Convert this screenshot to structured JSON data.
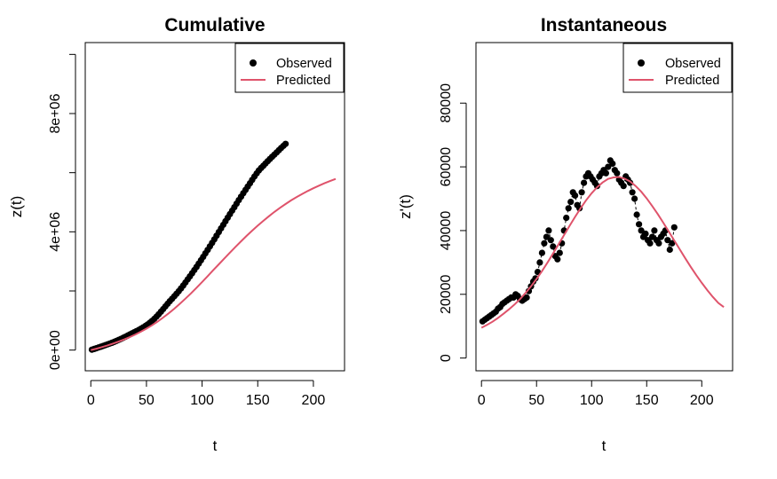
{
  "colors": {
    "observed": "#000000",
    "predicted": "#DF536B",
    "axis": "#000000"
  },
  "chart_data": [
    {
      "type": "scatter",
      "title": "Cumulative",
      "xlabel": "t",
      "ylabel": "z(t)",
      "xlim": [
        -5,
        228
      ],
      "ylim": [
        -700000,
        10400000
      ],
      "x_ticks": [
        0,
        50,
        100,
        150,
        200
      ],
      "x_tick_labels": [
        "0",
        "50",
        "100",
        "150",
        "200"
      ],
      "y_ticks": [
        0,
        2000000,
        4000000,
        6000000,
        8000000,
        10000000
      ],
      "y_tick_labels": [
        "0e+00",
        "",
        "4e+06",
        "",
        "8e+06",
        ""
      ],
      "legend_position": "top-right",
      "grid": false,
      "series": [
        {
          "name": "Observed",
          "kind": "points",
          "x": [
            1,
            3,
            5,
            7,
            9,
            11,
            13,
            15,
            17,
            19,
            21,
            23,
            25,
            27,
            29,
            31,
            33,
            35,
            37,
            39,
            41,
            43,
            45,
            47,
            49,
            51,
            53,
            55,
            57,
            59,
            61,
            63,
            65,
            67,
            69,
            71,
            73,
            75,
            77,
            79,
            81,
            83,
            85,
            87,
            89,
            91,
            93,
            95,
            97,
            99,
            101,
            103,
            105,
            107,
            109,
            111,
            113,
            115,
            117,
            119,
            121,
            123,
            125,
            127,
            129,
            131,
            133,
            135,
            137,
            139,
            141,
            143,
            145,
            147,
            149,
            151,
            153,
            155,
            157,
            159,
            161,
            163,
            165,
            167,
            169,
            171,
            173,
            175
          ],
          "y": [
            15000,
            38000,
            63000,
            88000,
            114000,
            140000,
            166000,
            193000,
            220000,
            249000,
            279000,
            310000,
            343000,
            377000,
            413000,
            450000,
            488000,
            527000,
            565000,
            603000,
            641000,
            681000,
            723000,
            767000,
            815000,
            867000,
            924000,
            986000,
            1055000,
            1131000,
            1212000,
            1297000,
            1386000,
            1475000,
            1565000,
            1652000,
            1737000,
            1821000,
            1905000,
            1992000,
            2085000,
            2183000,
            2285000,
            2389000,
            2493000,
            2598000,
            2704000,
            2812000,
            2923000,
            3037000,
            3153000,
            3271000,
            3389000,
            3508000,
            3627000,
            3747000,
            3869000,
            3992000,
            4114000,
            4236000,
            4357000,
            4478000,
            4597000,
            4715000,
            4833000,
            4952000,
            5071000,
            5190000,
            5305000,
            5418000,
            5531000,
            5643000,
            5756000,
            5870000,
            5976000,
            6075000,
            6157000,
            6233000,
            6312000,
            6388000,
            6464000,
            6538000,
            6611000,
            6685000,
            6760000,
            6835000,
            6905000,
            6975000
          ]
        },
        {
          "name": "Predicted",
          "kind": "line",
          "x": [
            0,
            5,
            10,
            15,
            20,
            25,
            30,
            35,
            40,
            45,
            50,
            55,
            60,
            65,
            70,
            75,
            80,
            85,
            90,
            95,
            100,
            105,
            110,
            115,
            120,
            125,
            130,
            135,
            140,
            145,
            150,
            155,
            160,
            165,
            170,
            175,
            180,
            185,
            190,
            195,
            200,
            205,
            210,
            215,
            220
          ],
          "y": [
            0,
            48000,
            101000,
            158000,
            220000,
            287000,
            360000,
            440000,
            527000,
            622000,
            726000,
            840000,
            964000,
            1099000,
            1244000,
            1399000,
            1564000,
            1738000,
            1920000,
            2109000,
            2303000,
            2501000,
            2701000,
            2901000,
            3100000,
            3297000,
            3490000,
            3679000,
            3862000,
            4039000,
            4209000,
            4371000,
            4526000,
            4672000,
            4810000,
            4940000,
            5062000,
            5176000,
            5283000,
            5382000,
            5475000,
            5561000,
            5641000,
            5716000,
            5790000
          ]
        }
      ]
    },
    {
      "type": "scatter",
      "title": "Instantaneous",
      "xlabel": "t",
      "ylabel": "z'(t)",
      "xlim": [
        -5,
        228
      ],
      "ylim": [
        -4000,
        99000
      ],
      "x_ticks": [
        0,
        50,
        100,
        150,
        200
      ],
      "x_tick_labels": [
        "0",
        "50",
        "100",
        "150",
        "200"
      ],
      "y_ticks": [
        0,
        20000,
        40000,
        60000,
        80000
      ],
      "y_tick_labels": [
        "0",
        "20000",
        "40000",
        "60000",
        "80000"
      ],
      "legend_position": "top-right",
      "grid": false,
      "series": [
        {
          "name": "Observed",
          "kind": "points",
          "x": [
            1,
            3,
            5,
            7,
            9,
            11,
            13,
            15,
            17,
            19,
            21,
            23,
            25,
            27,
            29,
            31,
            33,
            35,
            37,
            39,
            41,
            43,
            45,
            47,
            49,
            51,
            53,
            55,
            57,
            59,
            61,
            63,
            65,
            67,
            69,
            71,
            73,
            75,
            77,
            79,
            81,
            83,
            85,
            87,
            89,
            91,
            93,
            95,
            97,
            99,
            101,
            103,
            105,
            107,
            109,
            111,
            113,
            115,
            117,
            119,
            121,
            123,
            125,
            127,
            129,
            131,
            133,
            135,
            137,
            139,
            141,
            143,
            145,
            147,
            149,
            151,
            153,
            155,
            157,
            159,
            161,
            163,
            165,
            167,
            169,
            171,
            173,
            175
          ],
          "y": [
            11500,
            12000,
            12500,
            13000,
            13500,
            14000,
            14500,
            15500,
            16000,
            17000,
            17500,
            18000,
            18500,
            19000,
            19000,
            20000,
            19500,
            18500,
            18000,
            18500,
            19000,
            21000,
            22500,
            24000,
            25000,
            27000,
            30000,
            33000,
            36000,
            38000,
            40000,
            37000,
            35000,
            32000,
            31000,
            33000,
            36000,
            40000,
            44000,
            47000,
            49000,
            52000,
            51000,
            48000,
            47000,
            52000,
            55000,
            57000,
            58000,
            57000,
            56000,
            55000,
            54000,
            57000,
            58000,
            59000,
            58000,
            60000,
            62000,
            61000,
            59000,
            58000,
            56000,
            55000,
            54000,
            57000,
            56000,
            55000,
            52000,
            50000,
            45000,
            42000,
            40000,
            38000,
            39000,
            37000,
            36000,
            38000,
            40000,
            37000,
            36000,
            38000,
            39000,
            40000,
            37000,
            34000,
            36000,
            41000
          ]
        },
        {
          "name": "Predicted",
          "kind": "line",
          "x": [
            0,
            5,
            10,
            15,
            20,
            25,
            30,
            35,
            40,
            45,
            50,
            55,
            60,
            65,
            70,
            75,
            80,
            85,
            90,
            95,
            100,
            105,
            110,
            115,
            120,
            125,
            130,
            135,
            140,
            145,
            150,
            155,
            160,
            165,
            170,
            175,
            180,
            185,
            190,
            195,
            200,
            205,
            210,
            215,
            220
          ],
          "y": [
            9500,
            10400,
            11400,
            12600,
            13900,
            15300,
            16800,
            18500,
            20400,
            22500,
            24800,
            27300,
            30000,
            32800,
            35700,
            38600,
            41500,
            44300,
            47000,
            49500,
            51700,
            53600,
            55100,
            56200,
            56700,
            56800,
            56300,
            55400,
            54000,
            52200,
            50100,
            47700,
            45200,
            42500,
            39700,
            36900,
            34100,
            31300,
            28600,
            26000,
            23600,
            21300,
            19200,
            17300,
            16000
          ]
        }
      ]
    }
  ]
}
